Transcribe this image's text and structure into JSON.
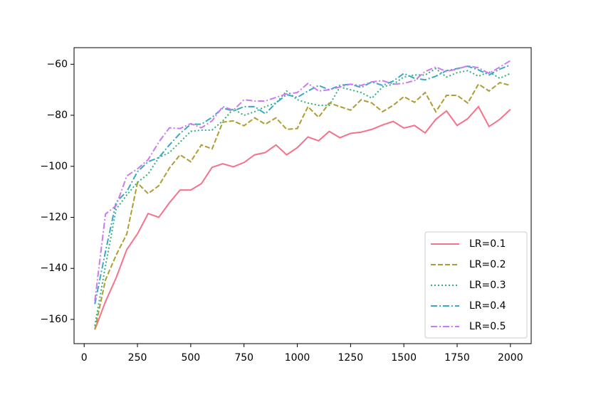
{
  "chart_data": {
    "type": "line",
    "x": [
      50,
      100,
      150,
      200,
      250,
      300,
      350,
      400,
      450,
      500,
      550,
      600,
      650,
      700,
      750,
      800,
      850,
      900,
      950,
      1000,
      1050,
      1100,
      1150,
      1200,
      1250,
      1300,
      1350,
      1400,
      1450,
      1500,
      1550,
      1600,
      1650,
      1700,
      1750,
      1800,
      1850,
      1900,
      1950,
      2000
    ],
    "series": [
      {
        "name": "LR=0.1",
        "color": "#f77189",
        "line_style": "solid",
        "values": [
          -164,
          -153,
          -143.7,
          -132.6,
          -126.5,
          -118.5,
          -120,
          -114.3,
          -109.3,
          -109.3,
          -106.8,
          -100.4,
          -99,
          -100.2,
          -98.5,
          -95.5,
          -94.6,
          -91.6,
          -95.5,
          -92.7,
          -88.5,
          -90,
          -86.3,
          -88.8,
          -87.1,
          -86.6,
          -85.5,
          -83.8,
          -82.4,
          -85,
          -84,
          -86.9,
          -81.6,
          -78.3,
          -84,
          -81.3,
          -76.6,
          -84.4,
          -81.6,
          -77.7
        ]
      },
      {
        "name": "LR=0.2",
        "color": "#ae9d31",
        "line_style": "dashed",
        "values": [
          -164,
          -144.5,
          -134.8,
          -126.5,
          -106.5,
          -110.7,
          -107.6,
          -100.7,
          -95.5,
          -98.2,
          -91.6,
          -93.2,
          -82.7,
          -82.2,
          -84.1,
          -81,
          -83.5,
          -81,
          -85.5,
          -85.2,
          -76.6,
          -80.8,
          -75.2,
          -76.6,
          -78,
          -73.9,
          -75.2,
          -78.6,
          -76.1,
          -72.7,
          -74.9,
          -71.1,
          -78.6,
          -72.2,
          -72.2,
          -75.2,
          -67.8,
          -70.5,
          -67.2,
          -68.3
        ]
      },
      {
        "name": "LR=0.3",
        "color": "#33b07a",
        "line_style": "dotted",
        "values": [
          -162.5,
          -139,
          -116.8,
          -111.2,
          -106.3,
          -103,
          -96.6,
          -94.6,
          -90.5,
          -86.3,
          -85.8,
          -85.8,
          -82.2,
          -77.5,
          -80,
          -78.6,
          -76.6,
          -75.2,
          -70.5,
          -73.9,
          -75.2,
          -76.1,
          -76.1,
          -68.9,
          -70,
          -71.1,
          -73.3,
          -68.9,
          -67.8,
          -65,
          -64.2,
          -64.2,
          -61.7,
          -65,
          -63.3,
          -62.5,
          -64.7,
          -63,
          -65.5,
          -63.6
        ]
      },
      {
        "name": "LR=0.4",
        "color": "#38a9c5",
        "line_style": "dashdot",
        "values": [
          -154,
          -133.4,
          -114,
          -109.9,
          -102.1,
          -98.2,
          -96.6,
          -91.6,
          -87.1,
          -83.5,
          -83.5,
          -80.8,
          -77.2,
          -78.3,
          -76.6,
          -76.6,
          -79.4,
          -75.2,
          -71.9,
          -73,
          -70.5,
          -68.3,
          -70,
          -68.3,
          -67.8,
          -69.1,
          -66.9,
          -68.3,
          -66.6,
          -63.6,
          -65.5,
          -66.1,
          -64.7,
          -62.5,
          -61.7,
          -60.8,
          -62.2,
          -64.2,
          -61.9,
          -60.3
        ]
      },
      {
        "name": "LR=0.5",
        "color": "#cc7af4",
        "line_style": "dashdot",
        "values": [
          -152.8,
          -118.7,
          -115.4,
          -103.8,
          -101,
          -97.4,
          -90.5,
          -84.9,
          -85.2,
          -83.3,
          -84.9,
          -82.2,
          -76.6,
          -78,
          -73.9,
          -74.4,
          -74.4,
          -73,
          -71.6,
          -71.1,
          -67.5,
          -70.5,
          -70,
          -68.9,
          -67.8,
          -68.3,
          -66.9,
          -66.4,
          -67.8,
          -67.5,
          -66.4,
          -62.8,
          -61.1,
          -62.8,
          -61.9,
          -60.6,
          -61.4,
          -63.6,
          -61.1,
          -58.6
        ]
      }
    ],
    "xlim": [
      -47.5,
      2097.5
    ],
    "ylim": [
      -169.5,
      -53.5
    ],
    "xticks": [
      0,
      250,
      500,
      750,
      1000,
      1250,
      1500,
      1750,
      2000
    ],
    "yticks": [
      {
        "value": -160,
        "label": "−160"
      },
      {
        "value": -140,
        "label": "−140"
      },
      {
        "value": -120,
        "label": "−120"
      },
      {
        "value": -100,
        "label": "−100"
      },
      {
        "value": -80,
        "label": "−80"
      },
      {
        "value": -60,
        "label": "−60"
      }
    ],
    "legend": "lower right"
  }
}
